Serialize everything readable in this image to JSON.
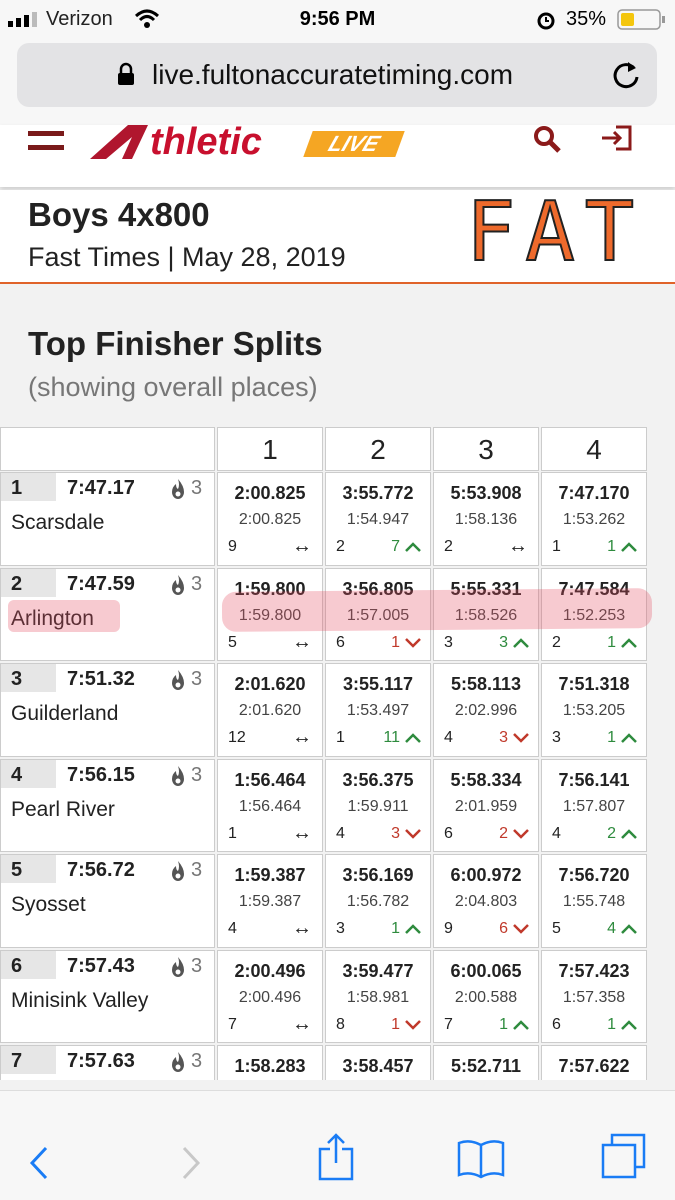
{
  "status": {
    "carrier": "Verizon",
    "time": "9:56 PM",
    "battery": "35%"
  },
  "browser": {
    "url": "live.fultonaccuratetiming.com"
  },
  "header": {
    "logo": "thletic",
    "logo_badge": "LIVE"
  },
  "event": {
    "title": "Boys 4x800",
    "subtitle": "Fast Times | May 28, 2019",
    "badge": "FAT"
  },
  "section": {
    "title": "Top Finisher Splits",
    "note": "(showing overall places)"
  },
  "table": {
    "legs": [
      "1",
      "2",
      "3",
      "4"
    ],
    "rows": [
      {
        "place": "1",
        "time": "7:47.17",
        "flames": "3",
        "team": "Scarsdale",
        "highlight": false,
        "legs": [
          {
            "cumulative": "2:00.825",
            "split": "2:00.825",
            "rank": "9",
            "change": "↔",
            "trend": "same"
          },
          {
            "cumulative": "3:55.772",
            "split": "1:54.947",
            "rank": "2",
            "change": "7",
            "trend": "up"
          },
          {
            "cumulative": "5:53.908",
            "split": "1:58.136",
            "rank": "2",
            "change": "↔",
            "trend": "same"
          },
          {
            "cumulative": "7:47.170",
            "split": "1:53.262",
            "rank": "1",
            "change": "1",
            "trend": "up"
          }
        ]
      },
      {
        "place": "2",
        "time": "7:47.59",
        "flames": "3",
        "team": "Arlington",
        "highlight": true,
        "legs": [
          {
            "cumulative": "1:59.800",
            "split": "1:59.800",
            "rank": "5",
            "change": "↔",
            "trend": "same"
          },
          {
            "cumulative": "3:56.805",
            "split": "1:57.005",
            "rank": "6",
            "change": "1",
            "trend": "down"
          },
          {
            "cumulative": "5:55.331",
            "split": "1:58.526",
            "rank": "3",
            "change": "3",
            "trend": "up"
          },
          {
            "cumulative": "7:47.584",
            "split": "1:52.253",
            "rank": "2",
            "change": "1",
            "trend": "up"
          }
        ]
      },
      {
        "place": "3",
        "time": "7:51.32",
        "flames": "3",
        "team": "Guilderland",
        "highlight": false,
        "legs": [
          {
            "cumulative": "2:01.620",
            "split": "2:01.620",
            "rank": "12",
            "change": "↔",
            "trend": "same"
          },
          {
            "cumulative": "3:55.117",
            "split": "1:53.497",
            "rank": "1",
            "change": "11",
            "trend": "up"
          },
          {
            "cumulative": "5:58.113",
            "split": "2:02.996",
            "rank": "4",
            "change": "3",
            "trend": "down"
          },
          {
            "cumulative": "7:51.318",
            "split": "1:53.205",
            "rank": "3",
            "change": "1",
            "trend": "up"
          }
        ]
      },
      {
        "place": "4",
        "time": "7:56.15",
        "flames": "3",
        "team": "Pearl River",
        "highlight": false,
        "legs": [
          {
            "cumulative": "1:56.464",
            "split": "1:56.464",
            "rank": "1",
            "change": "↔",
            "trend": "same"
          },
          {
            "cumulative": "3:56.375",
            "split": "1:59.911",
            "rank": "4",
            "change": "3",
            "trend": "down"
          },
          {
            "cumulative": "5:58.334",
            "split": "2:01.959",
            "rank": "6",
            "change": "2",
            "trend": "down"
          },
          {
            "cumulative": "7:56.141",
            "split": "1:57.807",
            "rank": "4",
            "change": "2",
            "trend": "up"
          }
        ]
      },
      {
        "place": "5",
        "time": "7:56.72",
        "flames": "3",
        "team": "Syosset",
        "highlight": false,
        "legs": [
          {
            "cumulative": "1:59.387",
            "split": "1:59.387",
            "rank": "4",
            "change": "↔",
            "trend": "same"
          },
          {
            "cumulative": "3:56.169",
            "split": "1:56.782",
            "rank": "3",
            "change": "1",
            "trend": "up"
          },
          {
            "cumulative": "6:00.972",
            "split": "2:04.803",
            "rank": "9",
            "change": "6",
            "trend": "down"
          },
          {
            "cumulative": "7:56.720",
            "split": "1:55.748",
            "rank": "5",
            "change": "4",
            "trend": "up"
          }
        ]
      },
      {
        "place": "6",
        "time": "7:57.43",
        "flames": "3",
        "team": "Minisink Valley",
        "highlight": false,
        "legs": [
          {
            "cumulative": "2:00.496",
            "split": "2:00.496",
            "rank": "7",
            "change": "↔",
            "trend": "same"
          },
          {
            "cumulative": "3:59.477",
            "split": "1:58.981",
            "rank": "8",
            "change": "1",
            "trend": "down"
          },
          {
            "cumulative": "6:00.065",
            "split": "2:00.588",
            "rank": "7",
            "change": "1",
            "trend": "up"
          },
          {
            "cumulative": "7:57.423",
            "split": "1:57.358",
            "rank": "6",
            "change": "1",
            "trend": "up"
          }
        ]
      },
      {
        "place": "7",
        "time": "7:57.63",
        "flames": "3",
        "highlight": false,
        "legs": [
          {
            "cumulative": "1:58.283"
          },
          {
            "cumulative": "3:58.457"
          },
          {
            "cumulative": "5:52.711"
          },
          {
            "cumulative": "7:57.622"
          }
        ]
      }
    ]
  }
}
